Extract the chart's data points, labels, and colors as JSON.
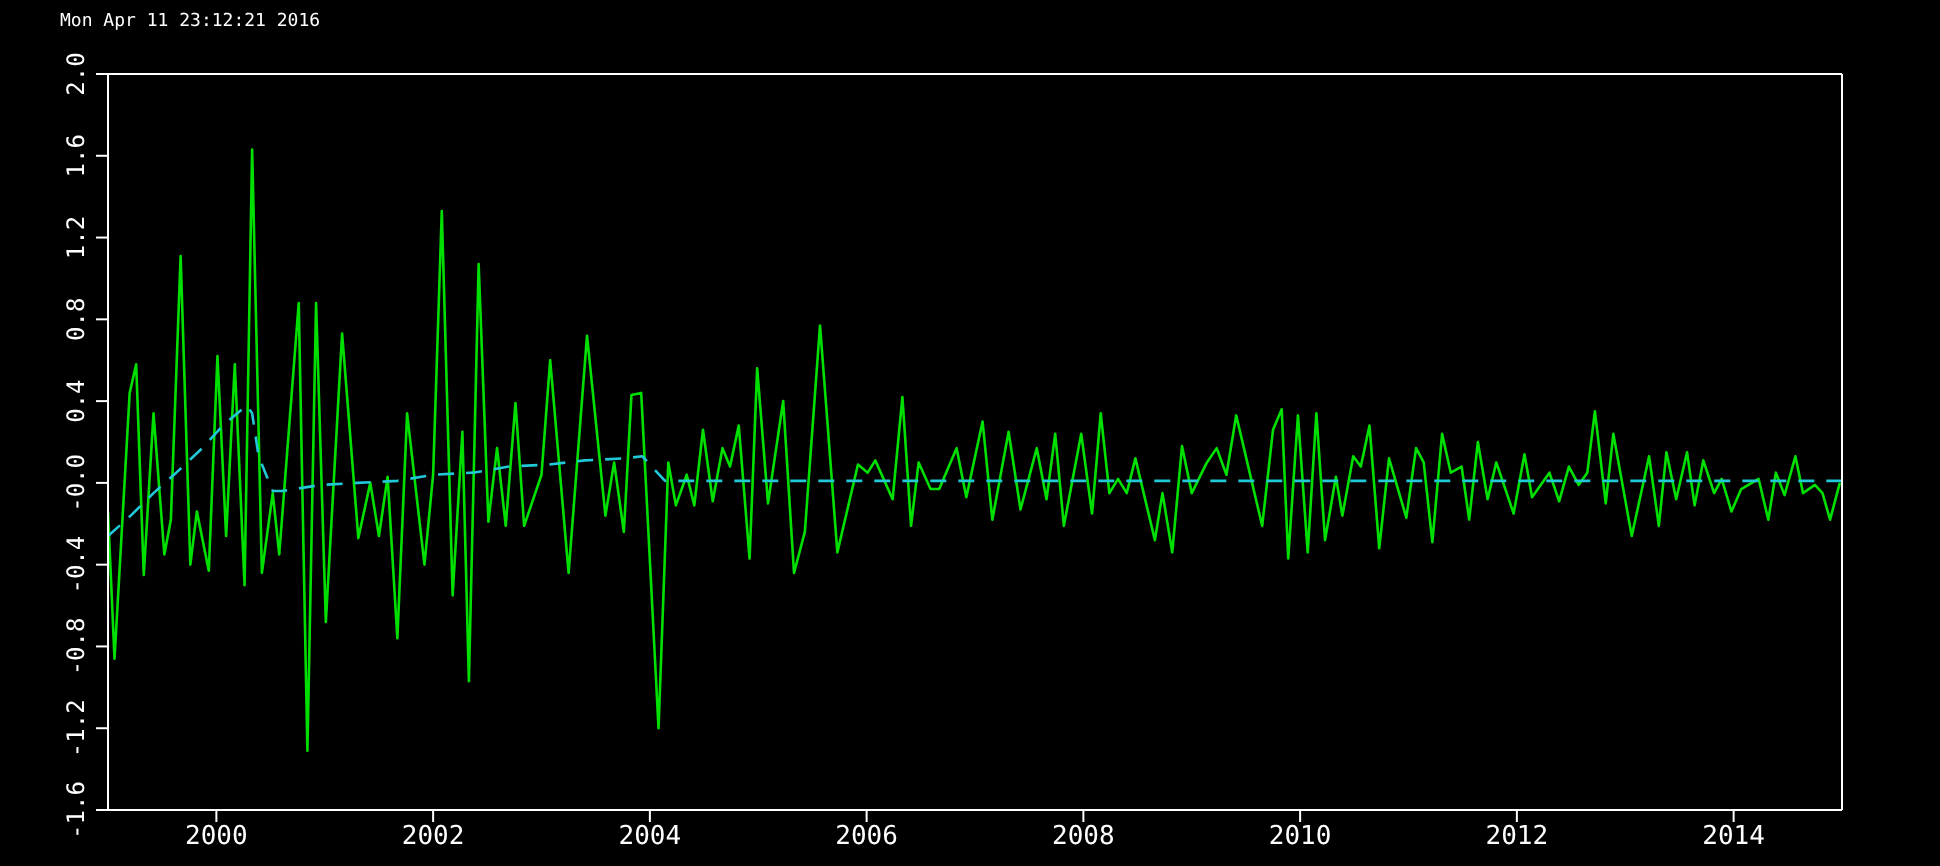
{
  "chart_data": {
    "type": "line",
    "annotations": [
      "Mon Apr 11 23:12:21 2016"
    ],
    "xlim": [
      1999,
      2015
    ],
    "xticks": [
      2000,
      2002,
      2004,
      2006,
      2008,
      2010,
      2012,
      2014
    ],
    "ylim": [
      -1.6,
      2
    ],
    "yticks": [
      -1.6,
      -1.2,
      -0.8,
      -0.4,
      {
        "value": 0,
        "label": "-0.0"
      },
      0.4,
      0.8,
      1.2,
      1.6,
      {
        "value": 2,
        "label": "2.0"
      }
    ],
    "marker": "none",
    "series": [
      {
        "color": "#00e000",
        "line_style": "solid",
        "x": [
          1999.0,
          1999.06,
          1999.2,
          1999.26,
          1999.33,
          1999.42,
          1999.52,
          1999.58,
          1999.67,
          1999.76,
          1999.82,
          1999.93,
          2000.01,
          2000.09,
          2000.17,
          2000.26,
          2000.33,
          2000.42,
          2000.52,
          2000.58,
          2000.76,
          2000.84,
          2000.92,
          2001.01,
          2001.16,
          2001.31,
          2001.42,
          2001.5,
          2001.58,
          2001.67,
          2001.76,
          2001.92,
          2002.0,
          2002.08,
          2002.18,
          2002.27,
          2002.33,
          2002.42,
          2002.51,
          2002.59,
          2002.67,
          2002.76,
          2002.84,
          2003.0,
          2003.08,
          2003.25,
          2003.42,
          2003.59,
          2003.67,
          2003.76,
          2003.83,
          2003.92,
          2004.08,
          2004.17,
          2004.24,
          2004.34,
          2004.41,
          2004.49,
          2004.58,
          2004.67,
          2004.74,
          2004.82,
          2004.92,
          2004.99,
          2005.09,
          2005.23,
          2005.33,
          2005.43,
          2005.57,
          2005.73,
          2005.92,
          2006.01,
          2006.08,
          2006.24,
          2006.33,
          2006.41,
          2006.48,
          2006.59,
          2006.67,
          2006.83,
          2006.92,
          2007.07,
          2007.16,
          2007.31,
          2007.42,
          2007.57,
          2007.66,
          2007.74,
          2007.82,
          2007.98,
          2008.08,
          2008.16,
          2008.24,
          2008.32,
          2008.4,
          2008.48,
          2008.66,
          2008.73,
          2008.82,
          2008.91,
          2009.0,
          2009.14,
          2009.23,
          2009.32,
          2009.41,
          2009.65,
          2009.75,
          2009.83,
          2009.89,
          2009.98,
          2010.07,
          2010.15,
          2010.23,
          2010.33,
          2010.39,
          2010.49,
          2010.56,
          2010.64,
          2010.73,
          2010.82,
          2010.98,
          2011.07,
          2011.14,
          2011.22,
          2011.31,
          2011.39,
          2011.49,
          2011.56,
          2011.64,
          2011.73,
          2011.81,
          2011.97,
          2012.07,
          2012.14,
          2012.3,
          2012.39,
          2012.48,
          2012.57,
          2012.65,
          2012.72,
          2012.82,
          2012.89,
          2013.06,
          2013.22,
          2013.31,
          2013.38,
          2013.47,
          2013.57,
          2013.64,
          2013.72,
          2013.82,
          2013.89,
          2013.98,
          2014.07,
          2014.23,
          2014.32,
          2014.39,
          2014.47,
          2014.57,
          2014.64,
          2014.75,
          2014.82,
          2014.89,
          2014.98
        ],
        "values": [
          -0.14,
          -0.86,
          0.44,
          0.58,
          -0.45,
          0.34,
          -0.35,
          -0.18,
          1.11,
          -0.4,
          -0.14,
          -0.43,
          0.62,
          -0.26,
          0.58,
          -0.5,
          1.63,
          -0.44,
          -0.05,
          -0.35,
          0.88,
          -1.31,
          0.88,
          -0.68,
          0.73,
          -0.27,
          0.0,
          -0.26,
          0.03,
          -0.76,
          0.34,
          -0.4,
          0.04,
          1.33,
          -0.55,
          0.25,
          -0.97,
          1.07,
          -0.19,
          0.17,
          -0.21,
          0.39,
          -0.21,
          0.04,
          0.6,
          -0.44,
          0.72,
          -0.16,
          0.1,
          -0.24,
          0.43,
          0.44,
          -1.2,
          0.1,
          -0.11,
          0.04,
          -0.11,
          0.26,
          -0.09,
          0.17,
          0.08,
          0.28,
          -0.37,
          0.56,
          -0.1,
          0.4,
          -0.44,
          -0.24,
          0.77,
          -0.34,
          0.09,
          0.05,
          0.11,
          -0.08,
          0.42,
          -0.21,
          0.1,
          -0.03,
          -0.03,
          0.17,
          -0.07,
          0.3,
          -0.18,
          0.25,
          -0.13,
          0.17,
          -0.08,
          0.24,
          -0.21,
          0.24,
          -0.15,
          0.34,
          -0.05,
          0.02,
          -0.05,
          0.12,
          -0.28,
          -0.05,
          -0.34,
          0.18,
          -0.05,
          0.1,
          0.17,
          0.04,
          0.33,
          -0.21,
          0.26,
          0.36,
          -0.37,
          0.33,
          -0.34,
          0.34,
          -0.28,
          0.03,
          -0.16,
          0.13,
          0.08,
          0.28,
          -0.32,
          0.12,
          -0.17,
          0.17,
          0.1,
          -0.29,
          0.24,
          0.05,
          0.08,
          -0.18,
          0.2,
          -0.08,
          0.1,
          -0.15,
          0.14,
          -0.07,
          0.05,
          -0.09,
          0.08,
          -0.01,
          0.05,
          0.35,
          -0.1,
          0.24,
          -0.26,
          0.13,
          -0.21,
          0.15,
          -0.08,
          0.15,
          -0.11,
          0.11,
          -0.05,
          0.02,
          -0.14,
          -0.03,
          0.02,
          -0.18,
          0.05,
          -0.06,
          0.13,
          -0.05,
          -0.01,
          -0.05,
          -0.18,
          0.0
        ]
      },
      {
        "color": "#20c8d8",
        "line_style": "dashed",
        "x": [
          1999.0,
          1999.21,
          1999.42,
          1999.63,
          1999.87,
          2000.06,
          2000.28,
          2000.33,
          2000.39,
          2000.52,
          2000.61,
          2000.96,
          2001.3,
          2001.67,
          2002.0,
          2002.37,
          2002.7,
          2003.07,
          2003.4,
          2003.77,
          2003.93,
          2004.14,
          2015.0
        ],
        "values": [
          -0.26,
          -0.16,
          -0.05,
          0.05,
          0.17,
          0.28,
          0.38,
          0.34,
          0.13,
          -0.04,
          -0.04,
          -0.01,
          0.0,
          0.01,
          0.04,
          0.05,
          0.08,
          0.09,
          0.11,
          0.12,
          0.13,
          0.01,
          0.01
        ]
      }
    ]
  }
}
